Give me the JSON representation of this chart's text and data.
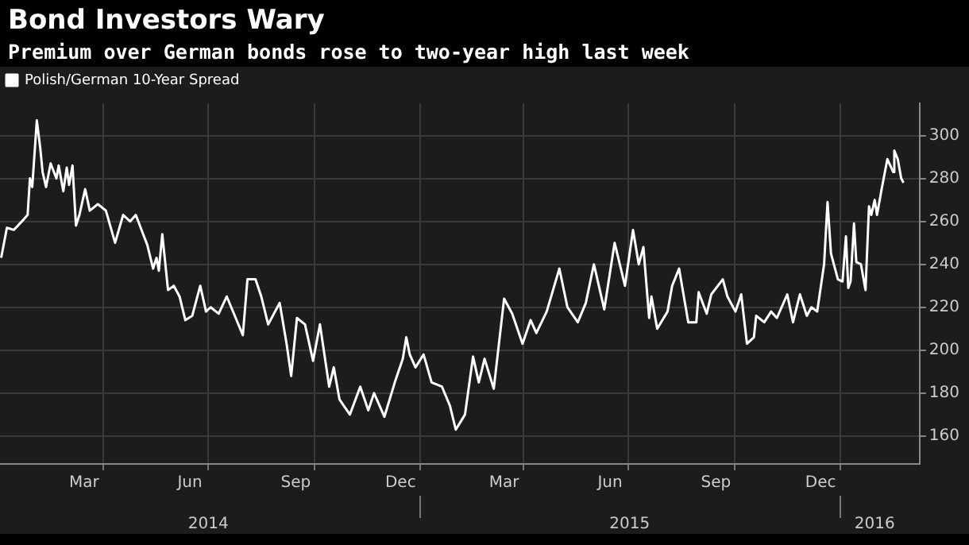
{
  "chart_data": {
    "type": "line",
    "title": "Bond Investors Wary",
    "subtitle": "Premium over German bonds rose to two-year high last week",
    "x": [
      "2014-01-02",
      "2014-01-07",
      "2014-01-13",
      "2014-01-20",
      "2014-01-25",
      "2014-01-27",
      "2014-01-29",
      "2014-02-02",
      "2014-02-05",
      "2014-02-07",
      "2014-02-10",
      "2014-02-14",
      "2014-02-19",
      "2014-02-21",
      "2014-02-25",
      "2014-02-28",
      "2014-03-02",
      "2014-03-05",
      "2014-03-08",
      "2014-03-11",
      "2014-03-16",
      "2014-03-20",
      "2014-03-27",
      "2014-04-03",
      "2014-04-11",
      "2014-04-18",
      "2014-04-24",
      "2014-04-29",
      "2014-05-04",
      "2014-05-09",
      "2014-05-14",
      "2014-05-17",
      "2014-05-19",
      "2014-05-22",
      "2014-05-27",
      "2014-06-01",
      "2014-06-06",
      "2014-06-11",
      "2014-06-17",
      "2014-06-24",
      "2014-06-29",
      "2014-07-03",
      "2014-07-10",
      "2014-07-17",
      "2014-07-24",
      "2014-07-31",
      "2014-08-04",
      "2014-08-11",
      "2014-08-16",
      "2014-08-22",
      "2014-09-01",
      "2014-09-07",
      "2014-09-11",
      "2014-09-16",
      "2014-09-23",
      "2014-09-30",
      "2014-10-06",
      "2014-10-14",
      "2014-10-18",
      "2014-10-23",
      "2014-11-01",
      "2014-11-10",
      "2014-11-17",
      "2014-11-22",
      "2014-12-01",
      "2014-12-10",
      "2014-12-17",
      "2014-12-20",
      "2014-12-23",
      "2014-12-28",
      "2015-01-04",
      "2015-01-11",
      "2015-01-20",
      "2015-01-27",
      "2015-02-01",
      "2015-02-09",
      "2015-02-16",
      "2015-02-21",
      "2015-02-26",
      "2015-03-06",
      "2015-03-15",
      "2015-03-22",
      "2015-03-31",
      "2015-04-07",
      "2015-04-12",
      "2015-04-21",
      "2015-05-02",
      "2015-05-09",
      "2015-05-18",
      "2015-05-25",
      "2015-06-01",
      "2015-06-10",
      "2015-06-19",
      "2015-06-28",
      "2015-07-05",
      "2015-07-10",
      "2015-07-14",
      "2015-07-19",
      "2015-07-21",
      "2015-07-26",
      "2015-08-04",
      "2015-08-08",
      "2015-08-14",
      "2015-08-22",
      "2015-08-29",
      "2015-08-31",
      "2015-09-07",
      "2015-09-11",
      "2015-09-21",
      "2015-09-25",
      "2015-10-02",
      "2015-10-07",
      "2015-10-12",
      "2015-10-18",
      "2015-10-20",
      "2015-10-27",
      "2015-11-02",
      "2015-11-07",
      "2015-11-16",
      "2015-11-21",
      "2015-11-27",
      "2015-12-03",
      "2015-12-07",
      "2015-12-12",
      "2015-12-18",
      "2015-12-21",
      "2015-12-24",
      "2015-12-30",
      "2016-01-03",
      "2016-01-06",
      "2016-01-08",
      "2016-01-10",
      "2016-01-13",
      "2016-01-15",
      "2016-01-19",
      "2016-01-23",
      "2016-01-26",
      "2016-01-28",
      "2016-01-31",
      "2016-02-02",
      "2016-02-06",
      "2016-02-11",
      "2016-02-16",
      "2016-02-17",
      "2016-02-20",
      "2016-02-23",
      "2016-02-25"
    ],
    "series": [
      {
        "name": "Polish/German 10-Year Spread",
        "color": "#ffffff",
        "values": [
          243,
          257,
          256,
          260,
          263,
          280,
          276,
          307,
          294,
          283,
          276,
          287,
          280,
          286,
          274,
          285,
          277,
          286,
          258,
          263,
          275,
          265,
          268,
          265,
          250,
          263,
          260,
          263,
          256,
          249,
          238,
          243,
          237,
          254,
          228,
          230,
          225,
          214,
          216,
          230,
          218,
          220,
          217,
          225,
          216,
          207,
          233,
          233,
          225,
          212,
          222,
          203,
          188,
          215,
          212,
          195,
          212,
          183,
          192,
          177,
          170,
          183,
          172,
          180,
          169,
          185,
          196,
          206,
          198,
          192,
          198,
          185,
          183,
          174,
          163,
          170,
          197,
          185,
          196,
          182,
          224,
          217,
          203,
          214,
          208,
          218,
          238,
          220,
          213,
          222,
          240,
          219,
          250,
          230,
          256,
          240,
          248,
          215,
          225,
          210,
          218,
          230,
          238,
          213,
          213,
          227,
          217,
          226,
          233,
          225,
          218,
          226,
          203,
          206,
          216,
          213,
          218,
          215,
          226,
          213,
          226,
          216,
          220,
          218,
          240,
          269,
          245,
          233,
          232,
          253,
          229,
          232,
          259,
          241,
          240,
          228,
          267,
          263,
          270,
          263,
          275,
          289,
          283,
          293,
          289,
          280,
          278
        ]
      }
    ],
    "xlim": [
      "2014-01-01",
      "2016-03-10"
    ],
    "xticks": [
      {
        "value": "2014-03-15",
        "label": "Mar"
      },
      {
        "value": "2014-04-01",
        "label": null
      },
      {
        "value": "2014-06-15",
        "label": "Jun"
      },
      {
        "value": "2014-07-01",
        "label": null
      },
      {
        "value": "2014-09-15",
        "label": "Sep"
      },
      {
        "value": "2014-10-01",
        "label": null
      },
      {
        "value": "2014-12-15",
        "label": "Dec"
      },
      {
        "value": "2015-01-01",
        "label": null
      },
      {
        "value": "2015-03-15",
        "label": "Mar"
      },
      {
        "value": "2015-04-01",
        "label": null
      },
      {
        "value": "2015-06-15",
        "label": "Jun"
      },
      {
        "value": "2015-07-01",
        "label": null
      },
      {
        "value": "2015-09-15",
        "label": "Sep"
      },
      {
        "value": "2015-10-01",
        "label": null
      },
      {
        "value": "2015-12-15",
        "label": "Dec"
      },
      {
        "value": "2016-01-01",
        "label": null
      }
    ],
    "x2lim": [
      "2014-01-01",
      "2016-03-10"
    ],
    "x2ticks": [
      {
        "value": "2014-07-01",
        "label": "2014"
      },
      {
        "value": "2015-01-01",
        "label": null
      },
      {
        "value": "2015-07-02",
        "label": "2015"
      },
      {
        "value": "2016-01-01",
        "label": null
      },
      {
        "value": "2016-01-31",
        "label": "2016"
      }
    ],
    "ylim": [
      147,
      315
    ],
    "yticks": [
      160,
      180,
      200,
      220,
      240,
      260,
      280,
      300
    ],
    "grid": true,
    "legend": "top left",
    "marker": "none",
    "line_style": "solid"
  }
}
